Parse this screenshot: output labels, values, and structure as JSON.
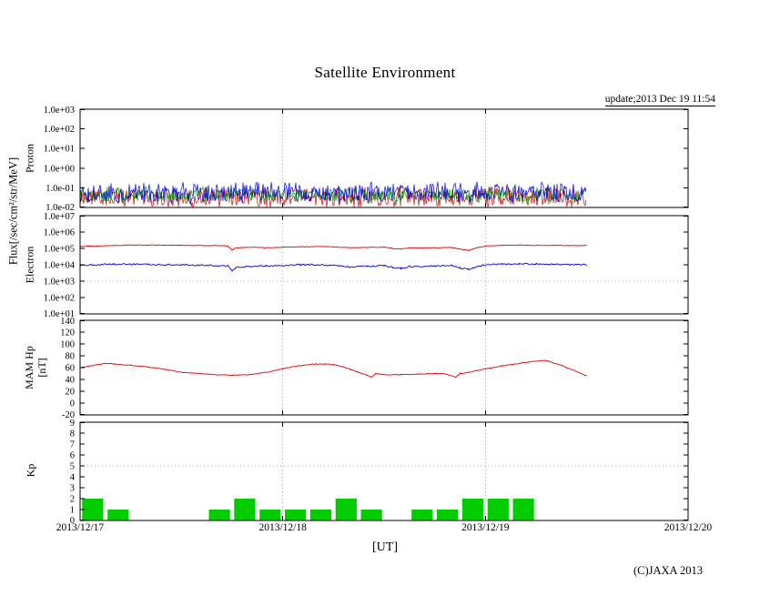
{
  "page": {
    "title": "Satellite Environment",
    "update_label": "update;2013 Dec 19 11:54",
    "xaxis_label": "[UT]",
    "copyright": "(C)JAXA 2013",
    "flux_axis_label": "Flux[/sec/cm²/str/MeV]"
  },
  "xaxis": {
    "tick_labels": [
      "2013/12/17",
      "2013/12/18",
      "2013/12/19",
      "2013/12/20"
    ],
    "tick_hours": [
      0,
      24,
      48,
      72
    ],
    "range_hours": [
      0,
      72
    ],
    "gridline_hours": [
      24,
      48
    ],
    "data_end_hour": 60
  },
  "chart_data": [
    {
      "id": "proton",
      "type": "line",
      "axis_label": "Proton",
      "yscale": "log",
      "ylim": [
        0.01,
        1000
      ],
      "ytick_values": [
        1000,
        100,
        10,
        1,
        0.1,
        0.01
      ],
      "ytick_labels": [
        "1.0e+03",
        "1.0e+02",
        "1.0e+01",
        "1.0e+00",
        "1.0e-01",
        "1.0e-02"
      ],
      "x_end_hour": 60,
      "series": [
        {
          "name": "proton-red",
          "color": "#dd0000",
          "band": [
            0.012,
            0.09
          ],
          "width": 0.7
        },
        {
          "name": "proton-green",
          "color": "#00a000",
          "band": [
            0.02,
            0.09
          ],
          "width": 0.7
        },
        {
          "name": "proton-blue",
          "color": "#0000dd",
          "band": [
            0.02,
            0.16
          ],
          "width": 0.7
        }
      ]
    },
    {
      "id": "electron",
      "type": "line",
      "axis_label": "Electron",
      "yscale": "log",
      "ylim": [
        10,
        10000000
      ],
      "ytick_values": [
        10000000,
        1000000,
        100000,
        10000,
        1000,
        100,
        10
      ],
      "ytick_labels": [
        "1.0e+07",
        "1.0e+06",
        "1.0e+05",
        "1.0e+04",
        "1.0e+03",
        "1.0e+02",
        "1.0e+01"
      ],
      "threshold": {
        "value": 1000
      },
      "x_end_hour": 60,
      "series": [
        {
          "name": "electron-high",
          "color": "#dd0000",
          "jitter": 0.03,
          "width": 0.9,
          "x_hours": [
            0,
            2,
            4,
            6,
            8,
            10,
            12,
            14,
            16,
            17.5,
            18,
            18.5,
            20,
            22,
            24,
            26,
            28,
            30,
            32,
            34,
            36,
            37,
            38,
            39,
            40,
            42,
            44,
            45,
            46,
            47,
            48,
            50,
            52,
            54,
            56,
            58,
            60
          ],
          "values": [
            130000,
            140000,
            150000,
            160000,
            160000,
            160000,
            155000,
            150000,
            150000,
            140000,
            80000,
            110000,
            120000,
            110000,
            120000,
            125000,
            130000,
            125000,
            110000,
            115000,
            120000,
            100000,
            90000,
            110000,
            105000,
            110000,
            115000,
            90000,
            75000,
            110000,
            140000,
            155000,
            160000,
            150000,
            150000,
            150000,
            150000
          ]
        },
        {
          "name": "electron-low",
          "color": "#0000dd",
          "jitter": 0.09,
          "width": 0.9,
          "x_hours": [
            0,
            2,
            4,
            6,
            8,
            10,
            12,
            14,
            16,
            17.5,
            18,
            18.5,
            20,
            22,
            24,
            26,
            28,
            30,
            32,
            34,
            36,
            37,
            38,
            39,
            40,
            42,
            44,
            45,
            46,
            47,
            48,
            50,
            52,
            54,
            56,
            58,
            60
          ],
          "values": [
            9000,
            10000,
            11000,
            11000,
            10500,
            10000,
            10000,
            9500,
            9000,
            8500,
            4500,
            7000,
            8000,
            8500,
            9000,
            10000,
            10000,
            9000,
            7500,
            8000,
            9000,
            7000,
            6000,
            8000,
            7500,
            8500,
            9000,
            6500,
            5000,
            8000,
            10000,
            11000,
            11500,
            11000,
            10500,
            10000,
            10000
          ]
        }
      ]
    },
    {
      "id": "mam-hp",
      "type": "line",
      "axis_label": "MAM Hp",
      "axis_label2": "[nT]",
      "yscale": "linear",
      "ylim": [
        -20,
        140
      ],
      "ytick_values": [
        140,
        120,
        100,
        80,
        60,
        40,
        20,
        0,
        -20
      ],
      "ytick_labels": [
        "140",
        "120",
        "100",
        "80",
        "60",
        "40",
        "20",
        "0",
        "-20"
      ],
      "x_end_hour": 60,
      "series": [
        {
          "name": "hp",
          "color": "#dd0000",
          "jitter": 1.2,
          "width": 0.9,
          "x_hours": [
            0,
            1,
            2,
            3,
            4,
            5,
            6,
            8,
            10,
            12,
            14,
            16,
            18,
            20,
            22,
            23,
            24,
            25,
            26,
            27,
            28,
            29,
            30,
            31,
            32,
            33,
            34,
            34.5,
            35,
            36,
            38,
            40,
            42,
            43,
            44,
            44.5,
            45,
            46,
            47,
            48,
            49,
            50,
            51,
            52,
            53,
            54,
            55,
            55.5,
            56,
            57,
            58,
            59,
            60
          ],
          "values": [
            60,
            62,
            65,
            67,
            66,
            65,
            64,
            61,
            57,
            52,
            50,
            48,
            47,
            48,
            52,
            55,
            58,
            61,
            63,
            65,
            66,
            66,
            65,
            62,
            57,
            52,
            47,
            44,
            50,
            48,
            48,
            49,
            50,
            50,
            46,
            44,
            50,
            52,
            55,
            58,
            60,
            63,
            65,
            67,
            69,
            71,
            72,
            71,
            68,
            64,
            58,
            52,
            46
          ]
        }
      ]
    },
    {
      "id": "kp",
      "type": "bar",
      "axis_label": "Kp",
      "yscale": "linear",
      "ylim": [
        0,
        9
      ],
      "ytick_values": [
        9,
        8,
        7,
        6,
        5,
        4,
        3,
        2,
        1,
        0
      ],
      "ytick_labels": [
        "9",
        "8",
        "7",
        "6",
        "5",
        "4",
        "3",
        "2",
        "1",
        "0"
      ],
      "threshold": {
        "value": 5
      },
      "bar_width_hours": 3,
      "bar_color": "#00cc00",
      "values_3h": [
        2,
        1,
        0,
        0,
        0,
        1,
        2,
        1,
        1,
        1,
        2,
        1,
        0,
        1,
        1,
        2,
        2,
        2
      ]
    }
  ]
}
